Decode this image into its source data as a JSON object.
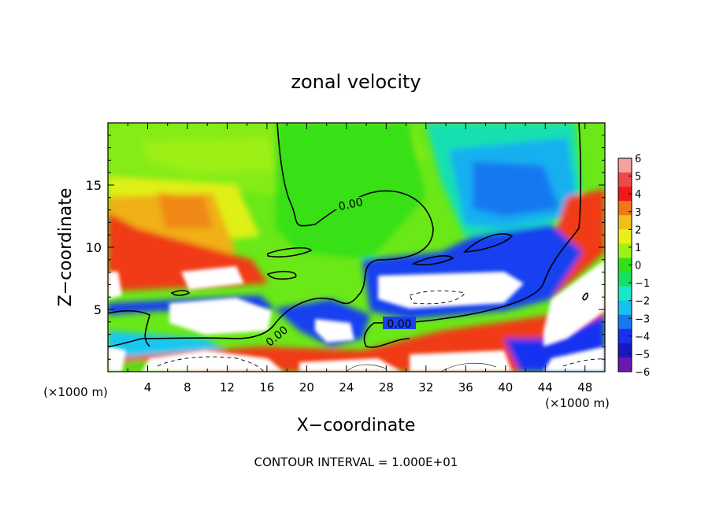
{
  "chart_data": {
    "type": "heatmap",
    "title": "zonal velocity",
    "xlabel": "X−coordinate",
    "ylabel": "Z−coordinate",
    "x_unit_left": "(×1000 m)",
    "x_unit_right": "(×1000 m)",
    "xlim": [
      0,
      50
    ],
    "ylim": [
      0,
      20
    ],
    "x_ticks": [
      "4",
      "8",
      "12",
      "16",
      "20",
      "24",
      "28",
      "32",
      "36",
      "40",
      "44",
      "48"
    ],
    "y_ticks": [
      "5",
      "10",
      "15"
    ],
    "colorbar": {
      "min": -6,
      "max": 6,
      "tick_labels": [
        "6",
        "5",
        "4",
        "3",
        "2",
        "1",
        "0",
        "−1",
        "−2",
        "−3",
        "−4",
        "−5",
        "−6"
      ],
      "colors": [
        "#f6a0a0",
        "#f04848",
        "#f01818",
        "#f07818",
        "#f0c018",
        "#e8f018",
        "#a0f018",
        "#30e018",
        "#18e060",
        "#18e8c8",
        "#18c0f0",
        "#1878f0",
        "#1830f0",
        "#1818c0",
        "#6a18b0"
      ]
    },
    "contour_labels": [
      "0.00",
      "0.00",
      "0.00"
    ],
    "footer": "CONTOUR INTERVAL = 1.000E+01",
    "over_range_color": "#ffffff"
  }
}
